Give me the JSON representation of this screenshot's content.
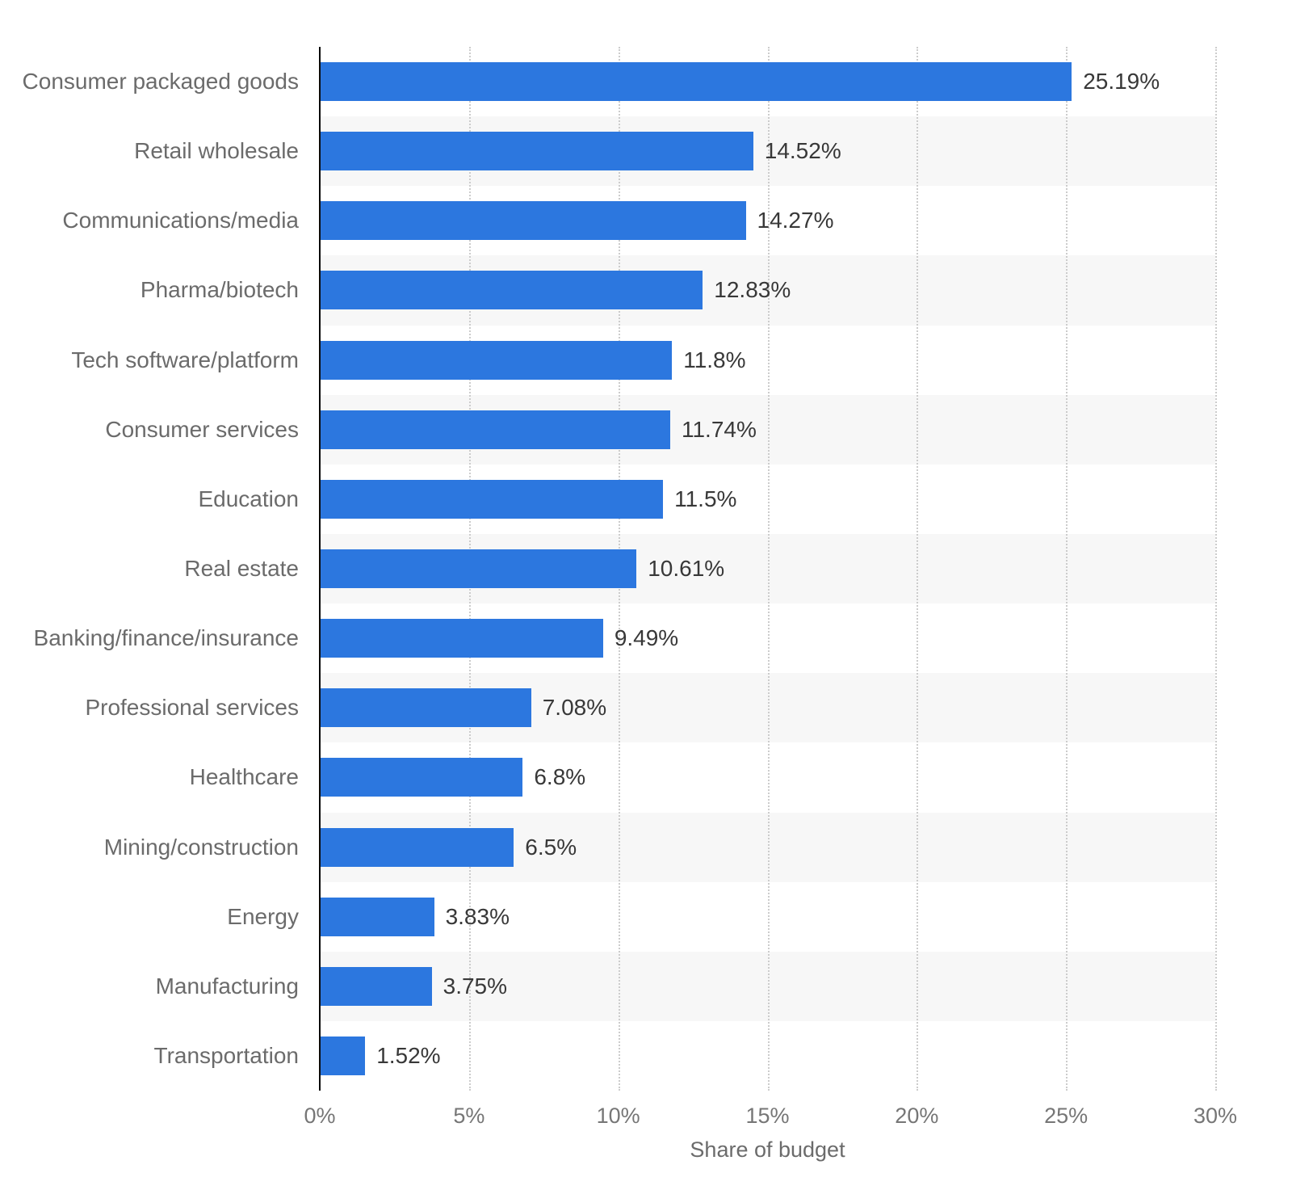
{
  "chart_data": {
    "type": "bar",
    "orientation": "horizontal",
    "title": "",
    "xlabel": "Share of budget",
    "ylabel": "",
    "xlim": [
      0,
      30
    ],
    "x_tick_step": 5,
    "x_ticks": [
      "0%",
      "5%",
      "10%",
      "15%",
      "20%",
      "25%",
      "30%"
    ],
    "grid": "vertical dotted gridlines every 5%, alternating horizontal row bands",
    "legend": "none",
    "categories": [
      "Consumer packaged goods",
      "Retail wholesale",
      "Communications/media",
      "Pharma/biotech",
      "Tech software/platform",
      "Consumer services",
      "Education",
      "Real estate",
      "Banking/finance/insurance",
      "Professional services",
      "Healthcare",
      "Mining/construction",
      "Energy",
      "Manufacturing",
      "Transportation"
    ],
    "values": [
      25.19,
      14.52,
      14.27,
      12.83,
      11.8,
      11.74,
      11.5,
      10.61,
      9.49,
      7.08,
      6.8,
      6.5,
      3.83,
      3.75,
      1.52
    ],
    "value_labels": [
      "25.19%",
      "14.52%",
      "14.27%",
      "12.83%",
      "11.8%",
      "11.74%",
      "11.5%",
      "10.61%",
      "9.49%",
      "7.08%",
      "6.8%",
      "6.5%",
      "3.83%",
      "3.75%",
      "1.52%"
    ]
  },
  "colors": {
    "bar": "#2c77df",
    "row_stripe": "#f7f7f7",
    "gridline": "#cccccc",
    "axis_line": "#0a0a0a",
    "category_label": "#6b6b6b",
    "value_label": "#383838",
    "tick_label": "#767676",
    "axis_title": "#6b6b6b",
    "background": "#ffffff"
  }
}
